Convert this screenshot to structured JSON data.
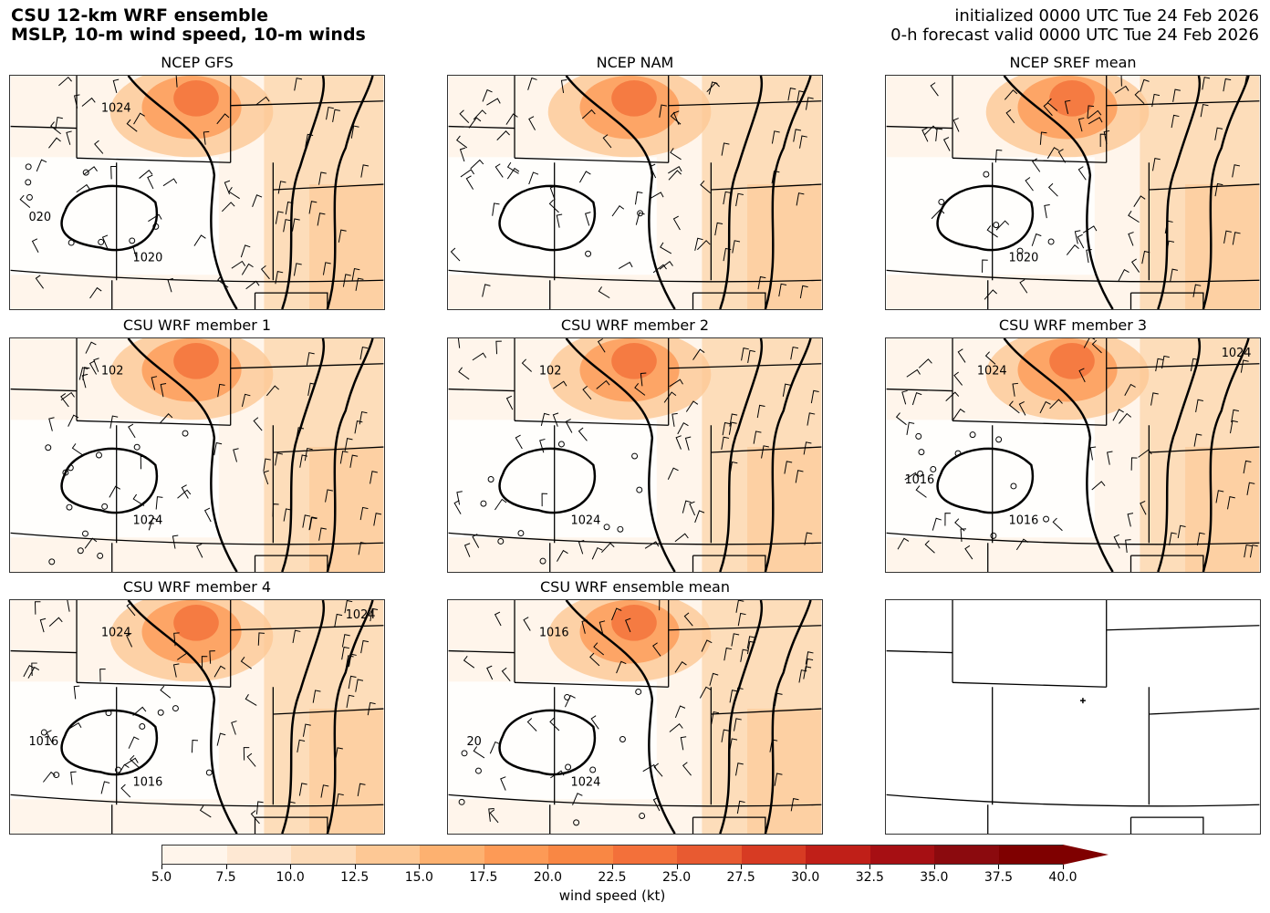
{
  "header": {
    "title_line1": "CSU 12-km WRF ensemble",
    "title_line2": "MSLP, 10-m wind speed, 10-m winds",
    "init_line": "initialized 0000 UTC Tue 24 Feb 2026",
    "valid_line": "0-h forecast valid 0000 UTC Tue 24 Feb 2026"
  },
  "panels": [
    {
      "title": "NCEP GFS",
      "labels": [
        "1020",
        "1024",
        "020"
      ]
    },
    {
      "title": "NCEP NAM",
      "labels": []
    },
    {
      "title": "NCEP SREF mean",
      "labels": [
        "1020"
      ]
    },
    {
      "title": "CSU WRF member 1",
      "labels": [
        "1024",
        "102"
      ]
    },
    {
      "title": "CSU WRF member 2",
      "labels": [
        "1024",
        "102"
      ]
    },
    {
      "title": "CSU WRF member 3",
      "labels": [
        "1016",
        "1024",
        "1016",
        "1024"
      ]
    },
    {
      "title": "CSU WRF member 4",
      "labels": [
        "1016",
        "1024",
        "1016",
        "1024"
      ]
    },
    {
      "title": "CSU WRF ensemble mean",
      "labels": [
        "1024",
        "1016",
        "20"
      ]
    },
    {
      "title": "",
      "labels": []
    }
  ],
  "colorbar": {
    "label": "wind speed (kt)",
    "ticks": [
      "5.0",
      "7.5",
      "10.0",
      "12.5",
      "15.0",
      "17.5",
      "20.0",
      "22.5",
      "25.0",
      "27.5",
      "30.0",
      "32.5",
      "35.0",
      "37.5",
      "40.0"
    ],
    "colors": [
      "#fff5eb",
      "#fee8d3",
      "#fddbb8",
      "#fdc895",
      "#fdb170",
      "#fd9a56",
      "#f98744",
      "#f3703a",
      "#e85a31",
      "#d73b23",
      "#c01f18",
      "#a60f13",
      "#8b0a0e",
      "#7f0000"
    ],
    "extend_color": "#7f0000"
  }
}
